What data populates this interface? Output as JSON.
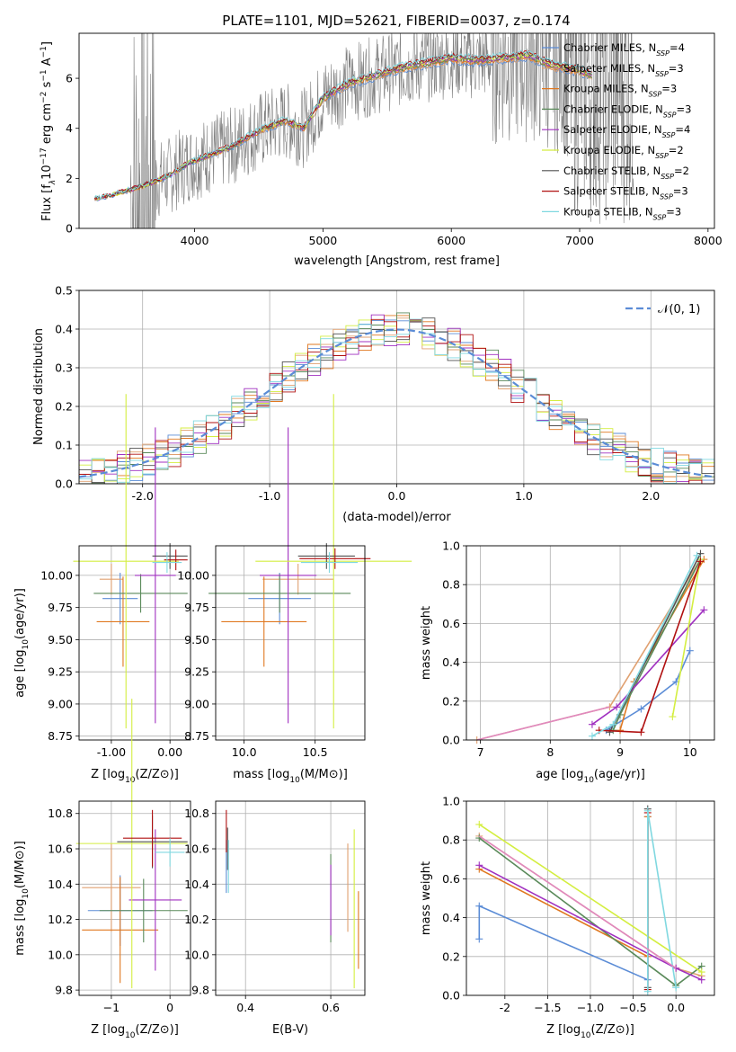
{
  "title": "PLATE=1101, MJD=52621, FIBERID=0037, z=0.174",
  "colors": {
    "data": "#808080",
    "Chabrier MILES": "#5b8cd6",
    "Salpeter MILES": "#e0a070",
    "Kroupa MILES": "#e07820",
    "Chabrier ELODIE": "#5a8a5a",
    "Salpeter ELODIE": "#a030c0",
    "Kroupa ELODIE": "#d4ee40",
    "Chabrier STELIB": "#505050",
    "Salpeter STELIB": "#b01010",
    "Kroupa STELIB": "#80d8e0",
    "pink": "#e088c0",
    "gauss": "#5b8cd6"
  },
  "chart_data": [
    {
      "type": "line",
      "panel": "spectrum",
      "title": "PLATE=1101, MJD=52621, FIBERID=0037, z=0.174",
      "xlabel": "wavelength [Angstrom, rest frame]",
      "ylabel_parts": [
        "Flux [f",
        "λ",
        "10",
        "−17",
        " erg cm",
        "−2",
        " s",
        "−1",
        " A",
        "−1",
        "]"
      ],
      "xlim": [
        3100,
        8050
      ],
      "ylim": [
        0,
        7.8
      ],
      "xticks": [
        4000,
        5000,
        6000,
        7000,
        8000
      ],
      "yticks": [
        0,
        2,
        4,
        6
      ],
      "legend": [
        {
          "name": "Chabrier MILES, N",
          "sub": "SSP",
          "tail": "=4"
        },
        {
          "name": "Salpeter MILES, N",
          "sub": "SSP",
          "tail": "=3"
        },
        {
          "name": "Kroupa MILES, N",
          "sub": "SSP",
          "tail": "=3"
        },
        {
          "name": "Chabrier ELODIE, N",
          "sub": "SSP",
          "tail": "=3"
        },
        {
          "name": "Salpeter ELODIE, N",
          "sub": "SSP",
          "tail": "=4"
        },
        {
          "name": "Kroupa ELODIE, N",
          "sub": "SSP",
          "tail": "=2"
        },
        {
          "name": "Chabrier STELIB, N",
          "sub": "SSP",
          "tail": "=2"
        },
        {
          "name": "Salpeter STELIB, N",
          "sub": "SSP",
          "tail": "=3"
        },
        {
          "name": "Kroupa STELIB, N",
          "sub": "SSP",
          "tail": "=3"
        }
      ],
      "model_x": [
        3250,
        3400,
        3600,
        3800,
        3950,
        4100,
        4300,
        4500,
        4700,
        4850,
        5000,
        5200,
        5400,
        5600,
        5800,
        6000,
        6200,
        6400,
        6600,
        6800,
        7000,
        7100
      ],
      "model_y": [
        1.2,
        1.4,
        1.7,
        2.1,
        2.6,
        2.9,
        3.3,
        3.9,
        4.3,
        4.0,
        5.2,
        5.8,
        6.1,
        6.4,
        6.6,
        6.8,
        6.7,
        6.8,
        6.9,
        6.5,
        6.3,
        6.1
      ]
    },
    {
      "type": "line",
      "panel": "residuals",
      "xlabel": "(data-model)/error",
      "ylabel": "Normed distribution",
      "xlim": [
        -2.5,
        2.5
      ],
      "ylim": [
        0,
        0.5
      ],
      "xticks": [
        -2,
        -1,
        0,
        1,
        2
      ],
      "yticks": [
        0.0,
        0.1,
        0.2,
        0.3,
        0.4,
        0.5
      ],
      "legend": [
        {
          "name": "𝒩(0, 1)"
        }
      ]
    },
    {
      "type": "scatter",
      "panel": "age-vs-Z",
      "xlabel": "Z [log10(Z/Z⊙)]",
      "ylabel": "age [log10(age/yr)]",
      "xlim": [
        -1.55,
        0.35
      ],
      "ylim": [
        8.72,
        10.23
      ],
      "xticks": [
        -1,
        0
      ],
      "yticks": [
        8.75,
        9.0,
        9.25,
        9.5,
        9.75,
        10.0
      ],
      "points": [
        {
          "model": "Chabrier MILES",
          "x": -0.85,
          "xerr": 0.3,
          "y": 9.82,
          "yerr": 0.2
        },
        {
          "model": "Salpeter MILES",
          "x": -1.0,
          "xerr": 0.2,
          "y": 9.97,
          "yerr": 0.12
        },
        {
          "model": "Kroupa MILES",
          "x": -0.8,
          "xerr": 0.45,
          "y": 9.64,
          "yerr": 0.35
        },
        {
          "model": "Chabrier ELODIE",
          "x": -0.5,
          "xerr": 0.8,
          "y": 9.86,
          "yerr": 0.15
        },
        {
          "model": "Salpeter ELODIE",
          "x": -0.25,
          "xerr": 0.35,
          "y": 10.0,
          "yerr": 1.15
        },
        {
          "model": "Kroupa ELODIE",
          "x": -0.75,
          "xerr": 0.9,
          "y": 10.11,
          "yerr": 1.3
        },
        {
          "model": "Chabrier STELIB",
          "x": 0.0,
          "xerr": 0.3,
          "y": 10.15,
          "yerr": 0.1
        },
        {
          "model": "Salpeter STELIB",
          "x": 0.1,
          "xerr": 0.2,
          "y": 10.12,
          "yerr": 0.08
        },
        {
          "model": "Kroupa STELIB",
          "x": -0.05,
          "xerr": 0.25,
          "y": 10.1,
          "yerr": 0.08
        }
      ]
    },
    {
      "type": "scatter",
      "panel": "age-vs-mass",
      "xlabel": "mass [log10(M/M⊙)]",
      "xlim": [
        9.8,
        10.85
      ],
      "ylim": [
        8.72,
        10.23
      ],
      "xticks": [
        10.0,
        10.5
      ],
      "yticks": [
        8.75,
        9.0,
        9.25,
        9.5,
        9.75,
        10.0
      ],
      "points": [
        {
          "model": "Chabrier MILES",
          "x": 10.25,
          "xerr": 0.22,
          "y": 9.82,
          "yerr": 0.2
        },
        {
          "model": "Salpeter MILES",
          "x": 10.38,
          "xerr": 0.25,
          "y": 9.97,
          "yerr": 0.12
        },
        {
          "model": "Kroupa MILES",
          "x": 10.14,
          "xerr": 0.3,
          "y": 9.64,
          "yerr": 0.35
        },
        {
          "model": "Chabrier ELODIE",
          "x": 10.25,
          "xerr": 0.5,
          "y": 9.86,
          "yerr": 0.15
        },
        {
          "model": "Salpeter ELODIE",
          "x": 10.31,
          "xerr": 0.2,
          "y": 10.0,
          "yerr": 1.15
        },
        {
          "model": "Kroupa ELODIE",
          "x": 10.63,
          "xerr": 0.55,
          "y": 10.11,
          "yerr": 1.3
        },
        {
          "model": "Chabrier STELIB",
          "x": 10.58,
          "xerr": 0.2,
          "y": 10.15,
          "yerr": 0.1
        },
        {
          "model": "Salpeter STELIB",
          "x": 10.64,
          "xerr": 0.25,
          "y": 10.13,
          "yerr": 0.08
        },
        {
          "model": "Kroupa STELIB",
          "x": 10.6,
          "xerr": 0.2,
          "y": 10.1,
          "yerr": 0.08
        }
      ]
    },
    {
      "type": "line",
      "panel": "massweight-vs-age",
      "xlabel": "age [log10(age/yr)]",
      "ylabel": "mass weight",
      "xlim": [
        6.8,
        10.35
      ],
      "ylim": [
        0,
        1.0
      ],
      "xticks": [
        7,
        8,
        9,
        10
      ],
      "yticks": [
        0.0,
        0.2,
        0.4,
        0.6,
        0.8,
        1.0
      ],
      "series": [
        {
          "model": "Chabrier MILES",
          "x": [
            8.8,
            9.3,
            9.8,
            10.0
          ],
          "y": [
            0.05,
            0.16,
            0.3,
            0.46
          ]
        },
        {
          "model": "Salpeter MILES",
          "x": [
            6.95,
            8.85,
            10.15
          ],
          "y": [
            0.0,
            0.17,
            0.93
          ]
        },
        {
          "model": "Kroupa MILES",
          "x": [
            9.0,
            9.2,
            10.2
          ],
          "y": [
            0.05,
            0.3,
            0.93
          ]
        },
        {
          "model": "Chabrier ELODIE",
          "x": [
            8.9,
            9.0,
            10.15
          ],
          "y": [
            0.05,
            0.13,
            0.93
          ]
        },
        {
          "model": "Salpeter ELODIE",
          "x": [
            8.6,
            8.95,
            10.2
          ],
          "y": [
            0.08,
            0.17,
            0.67
          ]
        },
        {
          "model": "Kroupa ELODIE",
          "x": [
            9.75,
            10.15
          ],
          "y": [
            0.12,
            0.93
          ]
        },
        {
          "model": "Chabrier STELIB",
          "x": [
            8.85,
            10.15
          ],
          "y": [
            0.04,
            0.96
          ]
        },
        {
          "model": "Salpeter STELIB",
          "x": [
            8.7,
            9.3,
            10.15
          ],
          "y": [
            0.05,
            0.04,
            0.92
          ]
        },
        {
          "model": "Kroupa STELIB",
          "x": [
            8.6,
            8.9,
            10.1
          ],
          "y": [
            0.02,
            0.08,
            0.95
          ]
        }
      ]
    },
    {
      "type": "scatter",
      "panel": "mass-vs-Z",
      "xlabel": "Z [log10(Z/Z⊙)]",
      "ylabel": "mass [log10(M/M⊙)]",
      "xlim": [
        -1.55,
        0.35
      ],
      "ylim": [
        9.77,
        10.87
      ],
      "xticks": [
        -1,
        0
      ],
      "yticks": [
        9.8,
        10.0,
        10.2,
        10.4,
        10.6,
        10.8
      ],
      "points": [
        {
          "model": "Chabrier MILES",
          "x": -0.85,
          "xerr": 0.55,
          "y": 10.25,
          "yerr": 0.2
        },
        {
          "model": "Salpeter MILES",
          "x": -1.0,
          "xerr": 0.5,
          "y": 10.38,
          "yerr": 0.25
        },
        {
          "model": "Kroupa MILES",
          "x": -0.85,
          "xerr": 0.65,
          "y": 10.14,
          "yerr": 0.3
        },
        {
          "model": "Chabrier ELODIE",
          "x": -0.45,
          "xerr": 0.75,
          "y": 10.25,
          "yerr": 0.18
        },
        {
          "model": "Salpeter ELODIE",
          "x": -0.25,
          "xerr": 0.45,
          "y": 10.31,
          "yerr": 0.4
        },
        {
          "model": "Kroupa ELODIE",
          "x": -0.65,
          "xerr": 0.95,
          "y": 10.63,
          "yerr": 0.82
        },
        {
          "model": "Chabrier STELIB",
          "x": -0.3,
          "xerr": 0.6,
          "y": 10.64,
          "yerr": 0.15
        },
        {
          "model": "Salpeter STELIB",
          "x": -0.3,
          "xerr": 0.5,
          "y": 10.66,
          "yerr": 0.16
        },
        {
          "model": "Kroupa STELIB",
          "x": 0.0,
          "xerr": 0.25,
          "y": 10.58,
          "yerr": 0.08
        }
      ]
    },
    {
      "type": "scatter",
      "panel": "mass-vs-EBV",
      "xlabel": "E(B-V)",
      "xlim": [
        0.33,
        0.68
      ],
      "ylim": [
        9.77,
        10.87
      ],
      "xticks": [
        0.4,
        0.6
      ],
      "yticks": [
        9.8,
        10.0,
        10.2,
        10.4,
        10.6,
        10.8
      ],
      "points": [
        {
          "model": "Chabrier MILES",
          "x": 0.355,
          "y": 10.5,
          "yerr": 0.15
        },
        {
          "model": "Salpeter MILES",
          "x": 0.64,
          "y": 10.38,
          "yerr": 0.25
        },
        {
          "model": "Kroupa MILES",
          "x": 0.665,
          "y": 10.14,
          "yerr": 0.22
        },
        {
          "model": "Chabrier ELODIE",
          "x": 0.6,
          "y": 10.32,
          "yerr": 0.25
        },
        {
          "model": "Salpeter ELODIE",
          "x": 0.6,
          "y": 10.31,
          "yerr": 0.2
        },
        {
          "model": "Kroupa ELODIE",
          "x": 0.655,
          "y": 10.26,
          "yerr": 0.45
        },
        {
          "model": "Chabrier STELIB",
          "x": 0.358,
          "y": 10.6,
          "yerr": 0.12
        },
        {
          "model": "Salpeter STELIB",
          "x": 0.355,
          "y": 10.7,
          "yerr": 0.12
        },
        {
          "model": "Kroupa STELIB",
          "x": 0.36,
          "y": 10.5,
          "yerr": 0.15
        }
      ]
    },
    {
      "type": "line",
      "panel": "massweight-vs-Z",
      "xlabel": "Z [log10(Z/Z⊙)]",
      "ylabel": "mass weight",
      "xlim": [
        -2.45,
        0.45
      ],
      "ylim": [
        0,
        1.0
      ],
      "xticks": [
        -2.0,
        -1.5,
        -1.0,
        -0.5,
        0.0
      ],
      "yticks": [
        0.0,
        0.2,
        0.4,
        0.6,
        0.8,
        1.0
      ],
      "series": [
        {
          "model": "Chabrier MILES",
          "x": [
            -2.3,
            -2.3,
            -0.33,
            -0.33
          ],
          "y": [
            0.29,
            0.46,
            0.08,
            0.92
          ]
        },
        {
          "model": "Salpeter MILES",
          "x": [
            -2.3,
            0.0,
            0.3
          ],
          "y": [
            0.82,
            0.14,
            0.1
          ]
        },
        {
          "model": "Kroupa MILES",
          "x": [
            -2.3,
            -0.33,
            -0.33
          ],
          "y": [
            0.65,
            0.2,
            0.92
          ]
        },
        {
          "model": "Chabrier ELODIE",
          "x": [
            -2.3,
            0.0,
            0.3
          ],
          "y": [
            0.81,
            0.05,
            0.15
          ]
        },
        {
          "model": "Salpeter ELODIE",
          "x": [
            -2.3,
            0.0,
            0.3
          ],
          "y": [
            0.67,
            0.14,
            0.08
          ]
        },
        {
          "model": "Kroupa ELODIE",
          "x": [
            -2.3,
            0.3
          ],
          "y": [
            0.88,
            0.12
          ]
        },
        {
          "model": "Chabrier STELIB",
          "x": [
            -0.33,
            -0.33
          ],
          "y": [
            0.04,
            0.96
          ]
        },
        {
          "model": "Salpeter STELIB",
          "x": [
            -0.33,
            -0.33
          ],
          "y": [
            0.03,
            0.94
          ]
        },
        {
          "model": "Kroupa STELIB",
          "x": [
            -0.33,
            -0.33,
            0.0
          ],
          "y": [
            0.02,
            0.95,
            0.04
          ]
        }
      ]
    }
  ]
}
